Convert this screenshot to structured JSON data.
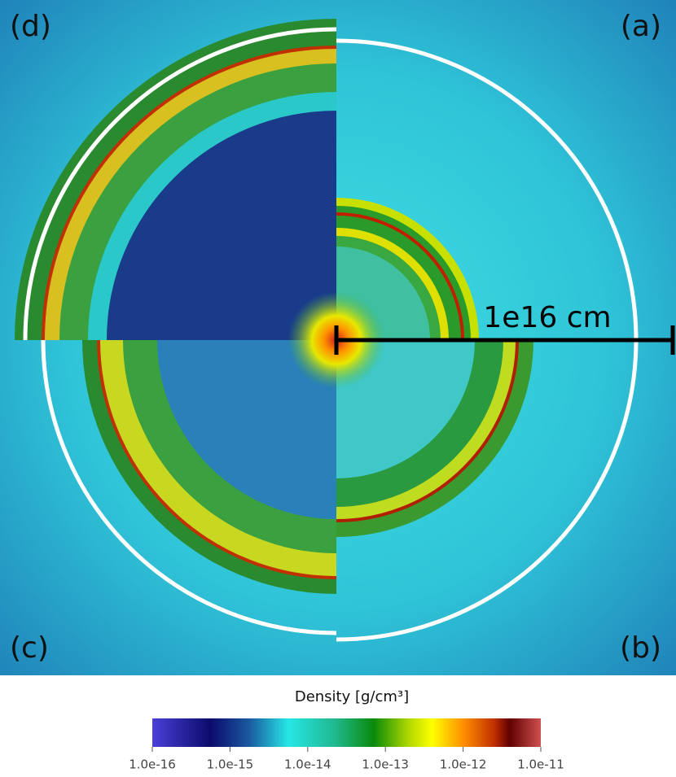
{
  "panels": [
    "(a)",
    "(b)",
    "(c)",
    "(d)"
  ],
  "scale_bar": "1e16 cm",
  "colorbar": {
    "title": "Density [g/cm³]",
    "log": true,
    "clim": [
      1e-16,
      1e-11
    ],
    "ticks": [
      {
        "value": 1e-16,
        "label": "1.0e-16"
      },
      {
        "value": 1e-15,
        "label": "1.0e-15"
      },
      {
        "value": 1e-14,
        "label": "1.0e-14"
      },
      {
        "value": 1e-13,
        "label": "1.0e-13"
      },
      {
        "value": 1e-12,
        "label": "1.0e-12"
      },
      {
        "value": 1e-11,
        "label": "1.0e-11"
      }
    ]
  }
}
